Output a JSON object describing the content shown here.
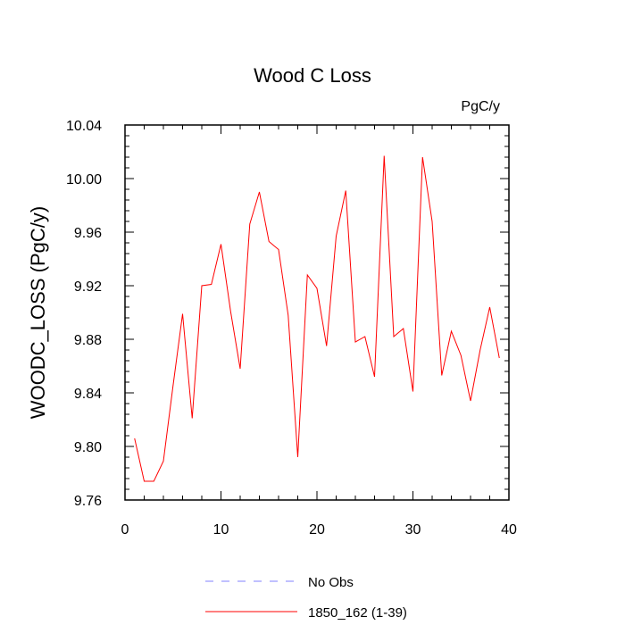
{
  "chart_data": {
    "type": "line",
    "title": "Wood C Loss",
    "units_label": "PgC/y",
    "ylabel": "WOODC_LOSS  (PgC/y)",
    "xlabel": "",
    "xlim": [
      0,
      40
    ],
    "ylim": [
      9.76,
      10.04
    ],
    "x_ticks": [
      0,
      10,
      20,
      30,
      40
    ],
    "y_ticks": [
      9.76,
      9.8,
      9.84,
      9.88,
      9.92,
      9.96,
      10.0,
      10.04
    ],
    "y_tick_labels": [
      "9.76",
      "9.80",
      "9.84",
      "9.88",
      "9.92",
      "9.96",
      "10.00",
      "10.04"
    ],
    "grid": false,
    "legend_position": "bottom",
    "series": [
      {
        "name": "No Obs",
        "color": "#8080ff",
        "style": "dashed",
        "x": [],
        "values": []
      },
      {
        "name": "1850_162 (1-39)",
        "color": "#ff0000",
        "style": "solid",
        "x": [
          1,
          2,
          3,
          4,
          5,
          6,
          7,
          8,
          9,
          10,
          11,
          12,
          13,
          14,
          15,
          16,
          17,
          18,
          19,
          20,
          21,
          22,
          23,
          24,
          25,
          26,
          27,
          28,
          29,
          30,
          31,
          32,
          33,
          34,
          35,
          36,
          37,
          38,
          39
        ],
        "values": [
          9.806,
          9.774,
          9.774,
          9.789,
          9.845,
          9.899,
          9.821,
          9.92,
          9.921,
          9.951,
          9.901,
          9.858,
          9.966,
          9.99,
          9.953,
          9.947,
          9.898,
          9.792,
          9.928,
          9.918,
          9.875,
          9.957,
          9.991,
          9.878,
          9.882,
          9.852,
          10.017,
          9.882,
          9.888,
          9.841,
          10.016,
          9.968,
          9.853,
          9.886,
          9.868,
          9.834,
          9.872,
          9.904,
          9.866
        ]
      }
    ]
  }
}
